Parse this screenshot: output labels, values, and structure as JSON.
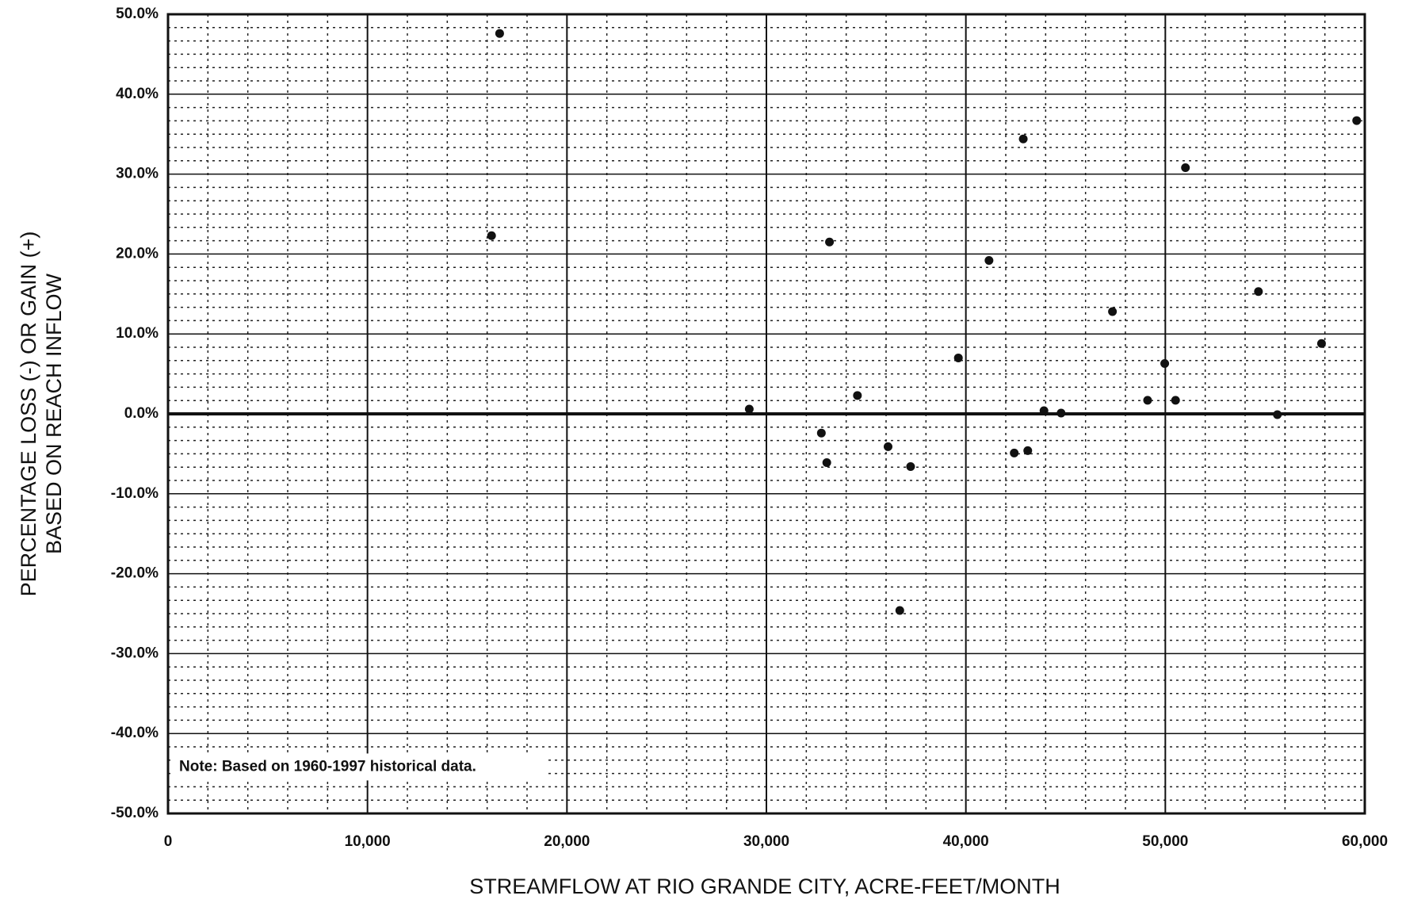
{
  "chart_data": {
    "type": "scatter",
    "xlabel": "STREAMFLOW AT RIO GRANDE CITY, ACRE-FEET/MONTH",
    "ylabel": [
      "PERCENTAGE LOSS (-) OR GAIN (+)",
      "BASED ON REACH INFLOW"
    ],
    "annotation": "Note: Based on 1960-1997 historical data.",
    "color": "#111111",
    "grid": true,
    "xlim": [
      0,
      60000
    ],
    "ylim": [
      -50,
      50
    ],
    "xticks": [
      0,
      {
        "value": 10000,
        "label": "10,000"
      },
      {
        "value": 20000,
        "label": "20,000"
      },
      {
        "value": 30000,
        "label": "30,000"
      },
      {
        "value": 40000,
        "label": "40,000"
      },
      {
        "value": 50000,
        "label": "50,000"
      },
      {
        "value": 60000,
        "label": "60,000"
      }
    ],
    "yticks": [
      {
        "value": -50,
        "label": "-50.0%"
      },
      {
        "value": -40,
        "label": "-40.0%"
      },
      {
        "value": -30,
        "label": "-30.0%"
      },
      {
        "value": -20,
        "label": "-20.0%"
      },
      {
        "value": -10,
        "label": "-10.0%"
      },
      {
        "value": 0,
        "label": "0.0%"
      },
      {
        "value": 10,
        "label": "10.0%"
      },
      {
        "value": 20,
        "label": "20.0%"
      },
      {
        "value": 30,
        "label": "30.0%"
      },
      {
        "value": 40,
        "label": "40.0%"
      },
      {
        "value": 50,
        "label": "50.0%"
      }
    ],
    "x": [
      16626,
      16220,
      29141,
      33162,
      32755,
      33027,
      34563,
      36099,
      36687,
      37229,
      39624,
      41160,
      42425,
      43103,
      42877,
      43916,
      44774,
      47349,
      49111,
      49970,
      50512,
      51009,
      54668,
      55617,
      57831,
      59593
    ],
    "values": [
      47.6,
      22.3,
      0.6,
      21.5,
      -2.4,
      -6.1,
      2.3,
      -4.1,
      -24.6,
      -6.6,
      7.0,
      19.2,
      -4.9,
      -4.6,
      34.4,
      0.4,
      0.1,
      12.8,
      1.7,
      6.3,
      1.7,
      30.8,
      15.3,
      -0.1,
      8.8,
      36.7
    ]
  }
}
